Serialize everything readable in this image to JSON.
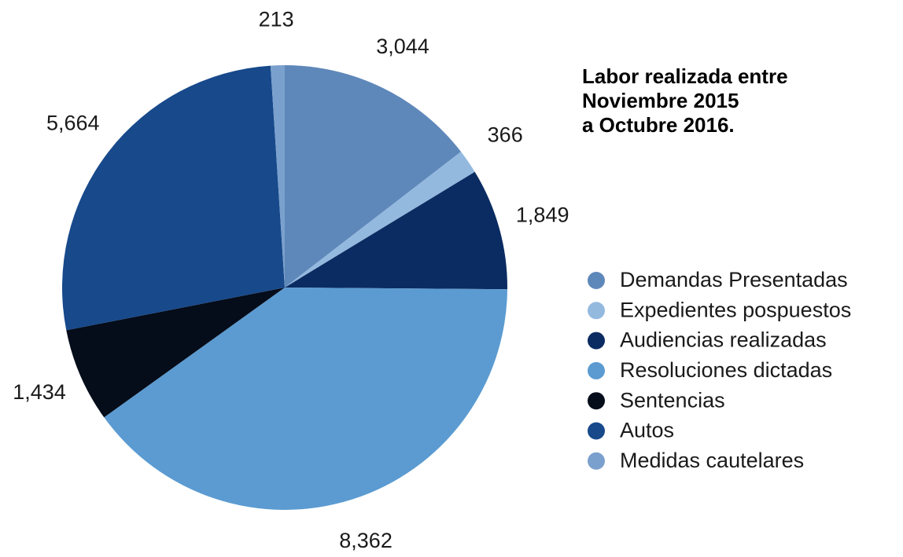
{
  "chart_data": {
    "type": "pie",
    "title": "Labor realizada entre\nNoviembre 2015\na Octubre 2016.",
    "categories": [
      "Demandas Presentadas",
      "Expedientes pospuestos",
      "Audiencias realizadas",
      "Resoluciones dictadas",
      "Sentencias",
      "Autos",
      "Medidas cautelares"
    ],
    "values": [
      3044,
      366,
      1849,
      8362,
      1434,
      5664,
      213
    ],
    "value_labels": [
      "3,044",
      "366",
      "1,849",
      "8,362",
      "1,434",
      "5,664",
      "213"
    ],
    "colors": [
      "#5f88ba",
      "#94b9df",
      "#0b2c62",
      "#5b9bd1",
      "#050c1a",
      "#17498b",
      "#7aa0cd"
    ],
    "legend": "right"
  }
}
